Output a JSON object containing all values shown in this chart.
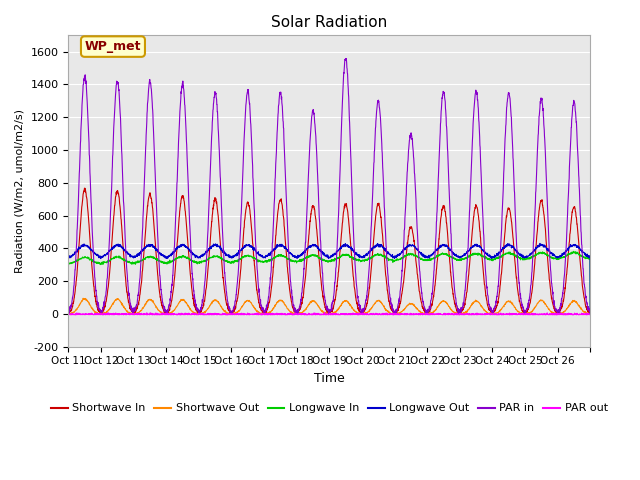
{
  "title": "Solar Radiation",
  "ylabel": "Radiation (W/m2, umol/m2/s)",
  "xlabel": "Time",
  "ylim": [
    -200,
    1700
  ],
  "yticks": [
    -200,
    0,
    200,
    400,
    600,
    800,
    1000,
    1200,
    1400,
    1600
  ],
  "xlim": [
    0,
    16
  ],
  "xtick_positions": [
    0,
    1,
    2,
    3,
    4,
    5,
    6,
    7,
    8,
    9,
    10,
    11,
    12,
    13,
    14,
    15,
    16
  ],
  "xtick_labels": [
    "Oct 11",
    "Oct 12",
    "Oct 13",
    "Oct 14",
    "Oct 15",
    "Oct 16",
    "Oct 17",
    "Oct 18",
    "Oct 19",
    "Oct 20",
    "Oct 21",
    "Oct 22",
    "Oct 23",
    "Oct 24",
    "Oct 25",
    "Oct 26",
    ""
  ],
  "label_box_text": "WP_met",
  "label_box_color": "#ffffcc",
  "label_box_edge": "#cc9900",
  "label_text_color": "#880000",
  "bg_color": "#e8e8e8",
  "series_order": [
    "shortwave_in",
    "shortwave_out",
    "longwave_in",
    "longwave_out",
    "par_in",
    "par_out"
  ],
  "series": {
    "shortwave_in": {
      "label": "Shortwave In",
      "color": "#cc0000"
    },
    "shortwave_out": {
      "label": "Shortwave Out",
      "color": "#ff8800"
    },
    "longwave_in": {
      "label": "Longwave In",
      "color": "#00cc00"
    },
    "longwave_out": {
      "label": "Longwave Out",
      "color": "#0000cc"
    },
    "par_in": {
      "label": "PAR in",
      "color": "#8800cc"
    },
    "par_out": {
      "label": "PAR out",
      "color": "#ff00ff"
    }
  },
  "n_days": 16,
  "pts_per_day": 144,
  "par_peaks": [
    1450,
    1420,
    1420,
    1400,
    1350,
    1360,
    1350,
    1240,
    1560,
    1300,
    1100,
    1360,
    1360,
    1350,
    1310,
    1290
  ],
  "sw_in_peaks": [
    760,
    750,
    730,
    720,
    700,
    680,
    700,
    660,
    670,
    670,
    530,
    660,
    660,
    650,
    690,
    650
  ]
}
